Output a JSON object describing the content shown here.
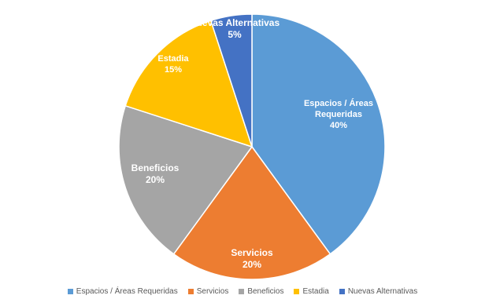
{
  "chart_data": {
    "type": "pie",
    "title": "",
    "categories": [
      "Espacios / Áreas Requeridas",
      "Servicios",
      "Beneficios",
      "Estadia",
      "Nuevas Alternativas"
    ],
    "values": [
      40,
      20,
      20,
      15,
      5
    ],
    "data_labels": [
      {
        "lines": [
          "Espacios / Áreas",
          "Requeridas"
        ],
        "value": "40%"
      },
      {
        "lines": [
          "Servicios"
        ],
        "value": "20%"
      },
      {
        "lines": [
          "Beneficios"
        ],
        "value": "20%"
      },
      {
        "lines": [
          "Estadia"
        ],
        "value": "15%"
      },
      {
        "lines": [
          "Nuevas Alternativas"
        ],
        "value": "5%"
      }
    ],
    "colors": [
      "#5B9BD5",
      "#ED7D31",
      "#A5A5A5",
      "#FFC000",
      "#4472C4"
    ],
    "start_angle_deg": 0,
    "direction": "clockwise",
    "legend_position": "bottom"
  }
}
